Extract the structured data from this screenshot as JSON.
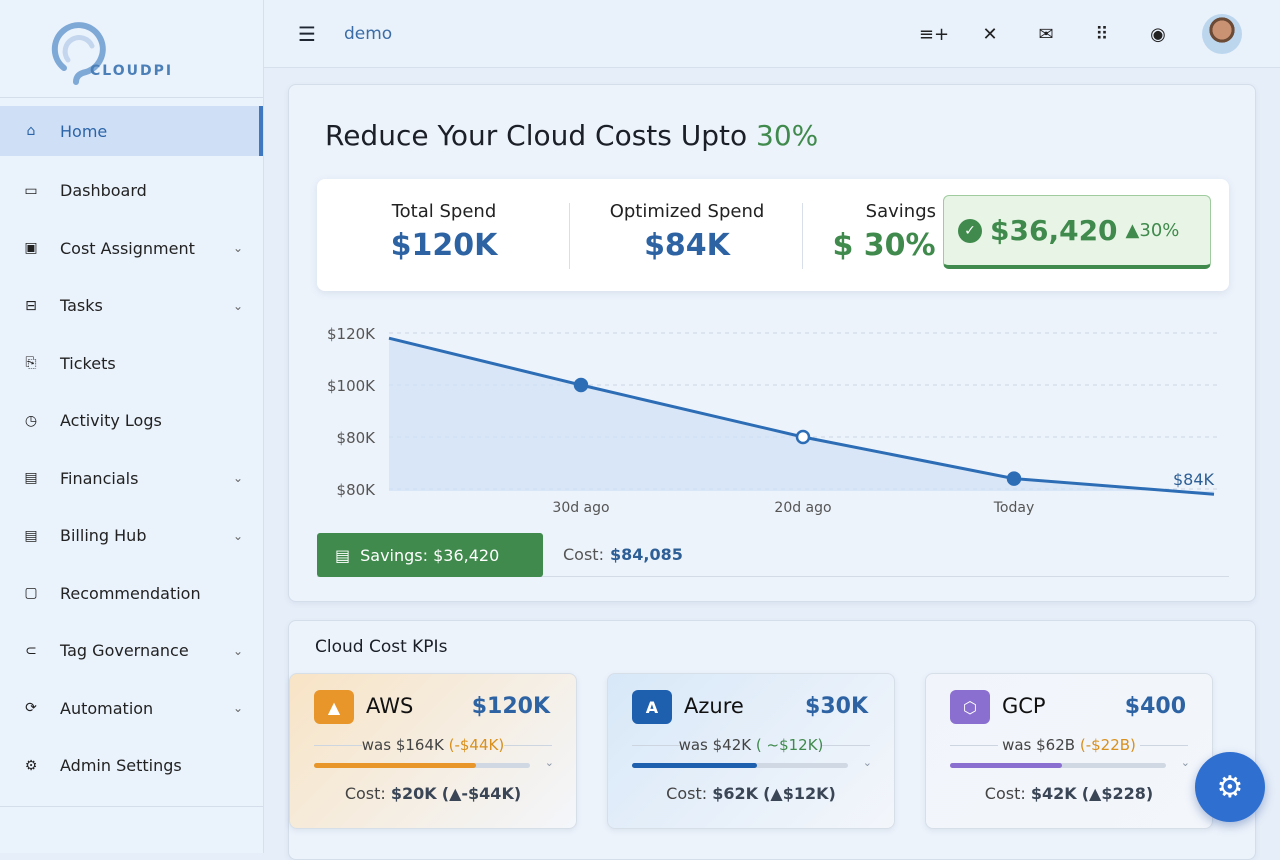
{
  "app": {
    "logo_text": "CLOUDPI"
  },
  "sidebar": {
    "items": [
      {
        "label": "Home",
        "icon": "home-icon",
        "active": true,
        "chevron": false
      },
      {
        "label": "Dashboard",
        "icon": "laptop-icon",
        "chevron": false
      },
      {
        "label": "Cost Assignment",
        "icon": "id-card-icon",
        "chevron": true
      },
      {
        "label": "Tasks",
        "icon": "tasks-icon",
        "chevron": true
      },
      {
        "label": "Tickets",
        "icon": "ticket-icon",
        "chevron": false
      },
      {
        "label": "Activity Logs",
        "icon": "compass-icon",
        "chevron": false
      },
      {
        "label": "Financials",
        "icon": "document-icon",
        "chevron": true
      },
      {
        "label": "Billing Hub",
        "icon": "billing-icon",
        "chevron": true
      },
      {
        "label": "Recommendation",
        "icon": "folder-icon",
        "chevron": false
      },
      {
        "label": "Tag Governance",
        "icon": "tag-icon",
        "chevron": true
      },
      {
        "label": "Automation",
        "icon": "automation-icon",
        "chevron": true
      },
      {
        "label": "Admin Settings",
        "icon": "admin-icon",
        "chevron": false
      }
    ]
  },
  "header": {
    "breadcrumb": "demo",
    "icons": [
      "playlist-add-icon",
      "collapse-icon",
      "mail-icon",
      "apps-grid-icon",
      "account-icon"
    ]
  },
  "main": {
    "title": "Reduce Your Cloud Costs Upto ",
    "title_highlight": "30%",
    "stats": [
      {
        "label": "Total Spend",
        "value": "$120K"
      },
      {
        "label": "Optimized Spend",
        "value": "$84K"
      },
      {
        "label": "Savings",
        "value": "$ 30%"
      }
    ],
    "savings_badge": {
      "amount": "$36,420",
      "change": "▲30%"
    },
    "savings_button": "Savings: $36,420",
    "cost_label": "Cost:",
    "cost_value": "$84,085"
  },
  "chart_data": {
    "type": "area",
    "y_tick_labels": [
      "$120K",
      "$100K",
      "$80K",
      "$80K"
    ],
    "x_tick_labels": [
      "30d ago",
      "20d ago",
      "Today"
    ],
    "x": [
      "start",
      "30d ago",
      "20d ago",
      "Today",
      "end"
    ],
    "values": [
      118,
      100,
      80,
      64,
      58
    ],
    "end_label": "$84K",
    "ylim": [
      60,
      120
    ],
    "grid": true,
    "colors": {
      "line": "#2d6db5",
      "fill": "#cfe0f5",
      "accent": "#3f8a4c"
    }
  },
  "kpis": {
    "title": "Cloud Cost KPIs",
    "cards": [
      {
        "name": "AWS",
        "amount": "$120K",
        "was": "was $164K",
        "delta": "(-$44K)",
        "delta_type": "neg",
        "progress": 0.75,
        "cost_label": "Cost:",
        "cost": "$20K",
        "cost_delta": "(▲-$44K)",
        "cost_delta_type": "none",
        "color": "#e8962a",
        "bg": "#f8e4c6"
      },
      {
        "name": "Azure",
        "amount": "$30K",
        "was": "was $42K",
        "delta": "( ~$12K)",
        "delta_type": "pos",
        "progress": 0.58,
        "cost_label": "Cost:",
        "cost": "$62K",
        "cost_delta": "(▲$12K)",
        "cost_delta_type": "pos",
        "color": "#1e5fae",
        "bg": "#d8e8f8"
      },
      {
        "name": "GCP",
        "amount": "$400",
        "was": "was $62B",
        "delta": "(-$22B)",
        "delta_type": "neg",
        "progress": 0.52,
        "cost_label": "Cost:",
        "cost": "$42K",
        "cost_delta": "(▲$228)",
        "cost_delta_type": "none",
        "color": "#8a6fd0",
        "bg": "#f1f5fb"
      }
    ]
  },
  "fab": {
    "icon": "settings-gear-icon"
  }
}
